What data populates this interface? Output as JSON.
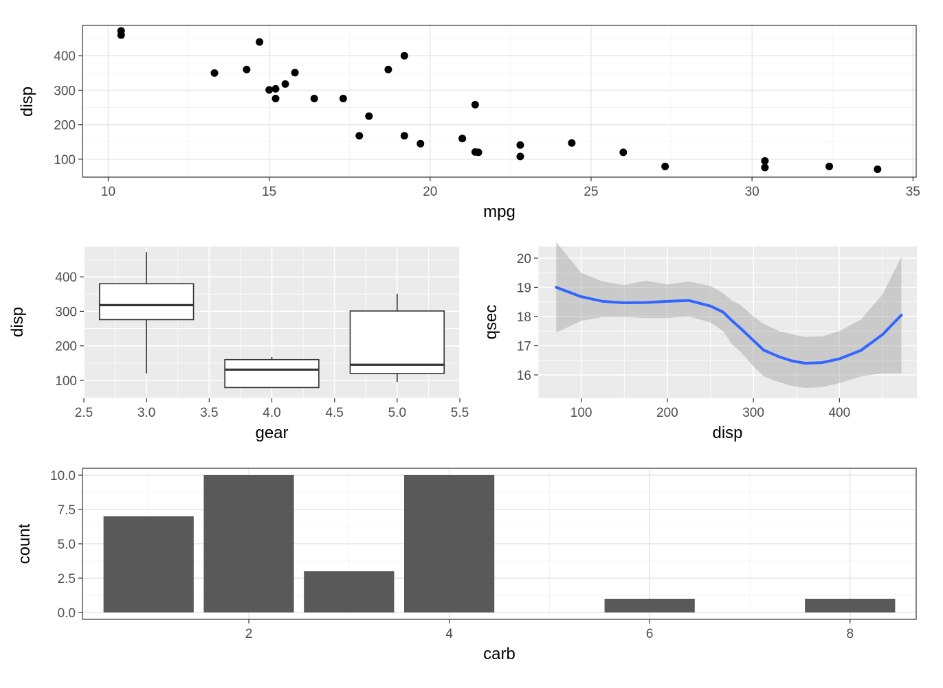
{
  "chart_data": [
    {
      "type": "scatter",
      "theme": "bw",
      "xlabel": "mpg",
      "ylabel": "disp",
      "xlim": [
        9.2,
        35.1
      ],
      "ylim": [
        48,
        488
      ],
      "xticks": [
        10,
        15,
        20,
        25,
        30,
        35
      ],
      "yticks": [
        100,
        200,
        300,
        400
      ],
      "grid": true,
      "points": [
        [
          10.4,
          472
        ],
        [
          10.4,
          460
        ],
        [
          13.3,
          350
        ],
        [
          14.3,
          360
        ],
        [
          14.7,
          440
        ],
        [
          15.0,
          301
        ],
        [
          15.2,
          304
        ],
        [
          15.2,
          276
        ],
        [
          15.5,
          318
        ],
        [
          15.8,
          351
        ],
        [
          16.4,
          276
        ],
        [
          17.3,
          276
        ],
        [
          17.8,
          168
        ],
        [
          18.1,
          225
        ],
        [
          18.7,
          360
        ],
        [
          19.2,
          400
        ],
        [
          19.2,
          168
        ],
        [
          19.7,
          145
        ],
        [
          21.0,
          160
        ],
        [
          21.0,
          160
        ],
        [
          21.4,
          258
        ],
        [
          21.4,
          121
        ],
        [
          21.5,
          120
        ],
        [
          22.8,
          141
        ],
        [
          22.8,
          108
        ],
        [
          24.4,
          147
        ],
        [
          26.0,
          120
        ],
        [
          27.3,
          79
        ],
        [
          30.4,
          95
        ],
        [
          30.4,
          76
        ],
        [
          32.4,
          79
        ],
        [
          33.9,
          71
        ]
      ]
    },
    {
      "type": "boxplot",
      "theme": "grey",
      "xlabel": "gear",
      "ylabel": "disp",
      "xlim": [
        2.5,
        5.5
      ],
      "ylim": [
        48,
        488
      ],
      "xticks": [
        "2.5",
        "3.0",
        "3.5",
        "4.0",
        "4.5",
        "5.0",
        "5.5"
      ],
      "yticks": [
        100,
        200,
        300,
        400
      ],
      "grid": true,
      "boxes": [
        {
          "x": 3,
          "min": 120,
          "q1": 276,
          "median": 318,
          "q3": 380,
          "max": 472
        },
        {
          "x": 4,
          "min": 79,
          "q1": 79,
          "median": 131,
          "q3": 160,
          "max": 168
        },
        {
          "x": 5,
          "min": 95,
          "q1": 120,
          "median": 145,
          "q3": 301,
          "max": 351
        }
      ]
    },
    {
      "type": "line",
      "theme": "grey",
      "smooth": true,
      "xlabel": "disp",
      "ylabel": "qsec",
      "xlim": [
        50,
        490
      ],
      "ylim": [
        15.2,
        20.4
      ],
      "xticks": [
        100,
        200,
        300,
        400
      ],
      "yticks": [
        16,
        17,
        18,
        19,
        20
      ],
      "grid": true,
      "line_color": "#3366ff",
      "band_color": "#999999",
      "x": [
        71,
        100,
        125,
        150,
        175,
        200,
        225,
        250,
        265,
        275,
        285,
        300,
        312,
        330,
        345,
        360,
        380,
        400,
        425,
        450,
        472
      ],
      "y": [
        19.0,
        18.68,
        18.52,
        18.47,
        18.48,
        18.52,
        18.55,
        18.36,
        18.15,
        17.86,
        17.6,
        17.18,
        16.85,
        16.62,
        16.48,
        16.4,
        16.42,
        16.55,
        16.84,
        17.38,
        18.05
      ],
      "band_low": [
        17.45,
        17.85,
        17.98,
        17.98,
        17.95,
        17.95,
        18.0,
        17.8,
        17.5,
        17.05,
        16.8,
        16.3,
        15.95,
        15.75,
        15.62,
        15.55,
        15.58,
        15.72,
        15.95,
        16.05,
        16.05
      ],
      "band_high": [
        20.55,
        19.5,
        19.2,
        19.08,
        19.23,
        19.1,
        19.2,
        19.05,
        18.8,
        18.55,
        18.4,
        18.0,
        17.75,
        17.5,
        17.39,
        17.3,
        17.32,
        17.5,
        17.9,
        18.75,
        20.05
      ]
    },
    {
      "type": "bar",
      "theme": "bw",
      "xlabel": "carb",
      "ylabel": "count",
      "xlim": [
        0.34,
        8.66
      ],
      "ylim": [
        0,
        10
      ],
      "xticks": [
        2,
        4,
        6,
        8
      ],
      "yticks": [
        "0.0",
        "2.5",
        "5.0",
        "7.5",
        "10.0"
      ],
      "grid": true,
      "bar_color": "#595959",
      "categories": [
        1,
        2,
        3,
        4,
        6,
        8
      ],
      "values": [
        7,
        10,
        3,
        10,
        1,
        1
      ]
    }
  ]
}
